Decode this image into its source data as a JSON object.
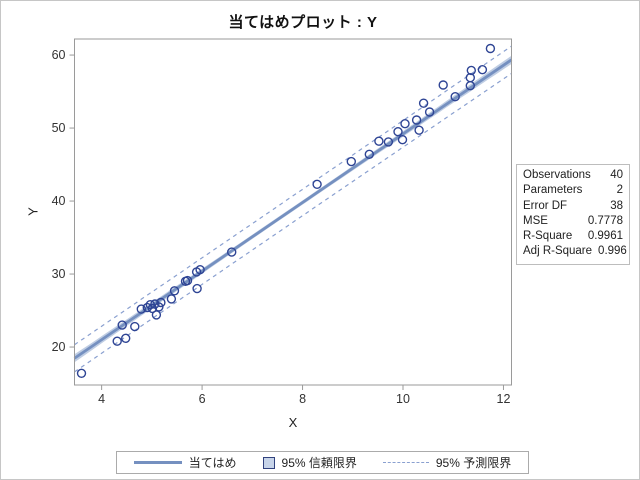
{
  "title": "当てはめプロット : Y",
  "chart_data": {
    "type": "scatter",
    "title": "当てはめプロット : Y",
    "xlabel": "X",
    "ylabel": "Y",
    "x_ticks": [
      4,
      6,
      8,
      10,
      12
    ],
    "y_ticks": [
      20,
      30,
      40,
      50,
      60
    ],
    "xlim": [
      3.46,
      12.16
    ],
    "ylim": [
      14.8,
      62.2
    ],
    "grid": false,
    "fit_line": {
      "intercept": 2.2,
      "slope": 4.7
    },
    "band_params": {
      "n": 40,
      "xbar": 7.7,
      "sxx": 267,
      "t_times_s": 1.785
    },
    "points": [
      [
        3.6,
        16.4
      ],
      [
        4.31,
        20.8
      ],
      [
        4.48,
        21.2
      ],
      [
        4.41,
        23.0
      ],
      [
        4.66,
        22.8
      ],
      [
        4.79,
        25.2
      ],
      [
        4.91,
        25.4
      ],
      [
        4.97,
        25.8
      ],
      [
        5.01,
        25.3
      ],
      [
        5.06,
        25.9
      ],
      [
        5.09,
        24.4
      ],
      [
        5.14,
        25.5
      ],
      [
        5.18,
        26.1
      ],
      [
        5.39,
        26.6
      ],
      [
        5.45,
        27.7
      ],
      [
        5.67,
        29.0
      ],
      [
        5.71,
        29.1
      ],
      [
        5.89,
        30.3
      ],
      [
        5.96,
        30.6
      ],
      [
        5.9,
        28.0
      ],
      [
        6.59,
        33.0
      ],
      [
        8.29,
        42.3
      ],
      [
        8.97,
        45.4
      ],
      [
        9.33,
        46.4
      ],
      [
        9.52,
        48.2
      ],
      [
        9.71,
        48.1
      ],
      [
        9.9,
        49.5
      ],
      [
        9.99,
        48.4
      ],
      [
        10.04,
        50.6
      ],
      [
        10.27,
        51.1
      ],
      [
        10.32,
        49.7
      ],
      [
        10.41,
        53.4
      ],
      [
        10.53,
        52.2
      ],
      [
        10.8,
        55.9
      ],
      [
        11.04,
        54.3
      ],
      [
        11.34,
        56.9
      ],
      [
        11.34,
        55.8
      ],
      [
        11.36,
        57.9
      ],
      [
        11.58,
        58.0
      ],
      [
        11.74,
        60.9
      ]
    ]
  },
  "stats_box": {
    "rows": [
      {
        "label": "Observations",
        "value": "40"
      },
      {
        "label": "Parameters",
        "value": "2"
      },
      {
        "label": "Error DF",
        "value": "38"
      },
      {
        "label": "MSE",
        "value": "0.7778"
      },
      {
        "label": "R-Square",
        "value": "0.9961"
      },
      {
        "label": "Adj R-Square",
        "value": "0.996"
      }
    ]
  },
  "legend": {
    "items": [
      {
        "label": "当てはめ",
        "type": "line"
      },
      {
        "label": "95% 信頼限界",
        "type": "band"
      },
      {
        "label": "95% 予測限界",
        "type": "dash"
      }
    ]
  },
  "colors": {
    "marker": "#2e4494",
    "fit_line": "#7590c0",
    "confidence_band": "#bfcde3",
    "prediction_dash": "#8aa0d0",
    "frame": "#9a9a9a",
    "tick_text": "#333333"
  }
}
